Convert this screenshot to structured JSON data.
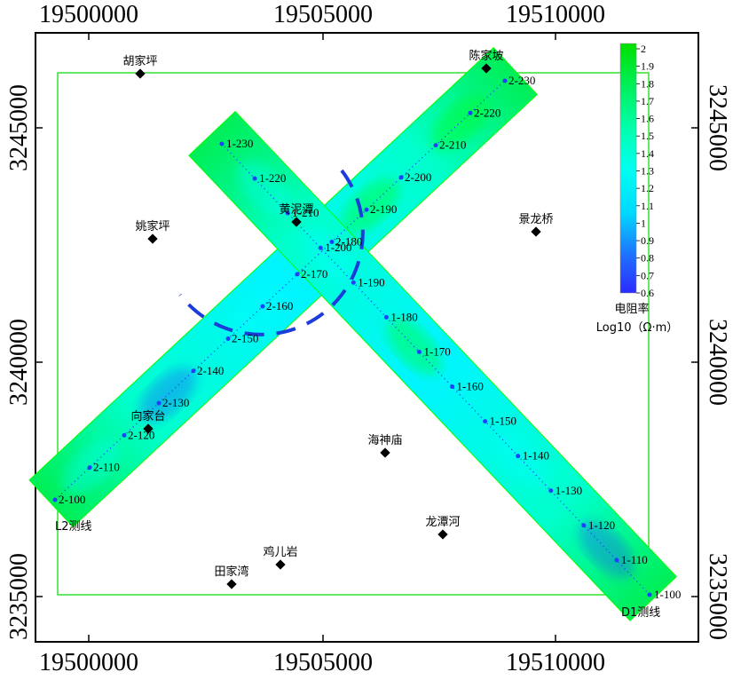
{
  "map": {
    "x_ticks": [
      "19500000",
      "19505000",
      "19510000"
    ],
    "y_ticks": [
      "3245000",
      "3240000",
      "3235000"
    ],
    "colors": {
      "survey_area_border": "#00dd00",
      "low_resistivity": "#2050ff",
      "mid_resistivity": "#00ffff",
      "high_resistivity": "#00ff00",
      "dashed_circle": "#1a3cd8"
    },
    "lines": [
      {
        "name": "L2测线",
        "station_prefix": "2-",
        "stations": [
          "100",
          "110",
          "120",
          "130",
          "140",
          "150",
          "160",
          "170",
          "180",
          "190",
          "200",
          "210",
          "220",
          "230"
        ]
      },
      {
        "name": "D1测线",
        "station_prefix": "1-",
        "stations": [
          "100",
          "110",
          "120",
          "130",
          "140",
          "150",
          "160",
          "170",
          "180",
          "190",
          "200",
          "210",
          "220",
          "230"
        ]
      }
    ],
    "places": [
      {
        "name": "胡家坪"
      },
      {
        "name": "陈家坡"
      },
      {
        "name": "黄泥潭"
      },
      {
        "name": "姚家坪"
      },
      {
        "name": "景龙桥"
      },
      {
        "name": "向家台"
      },
      {
        "name": "海神庙"
      },
      {
        "name": "龙潭河"
      },
      {
        "name": "鸡儿岩"
      },
      {
        "name": "田家湾"
      }
    ],
    "legend": {
      "ticks": [
        "2",
        "1.9",
        "1.8",
        "1.7",
        "1.6",
        "1.5",
        "1.4",
        "1.3",
        "1.2",
        "1.1",
        "1",
        "0.9",
        "0.8",
        "0.7",
        "0.6"
      ],
      "min": 0.6,
      "max": 2,
      "title": "电阻率",
      "unit": "Log10（Ω·m）"
    }
  }
}
